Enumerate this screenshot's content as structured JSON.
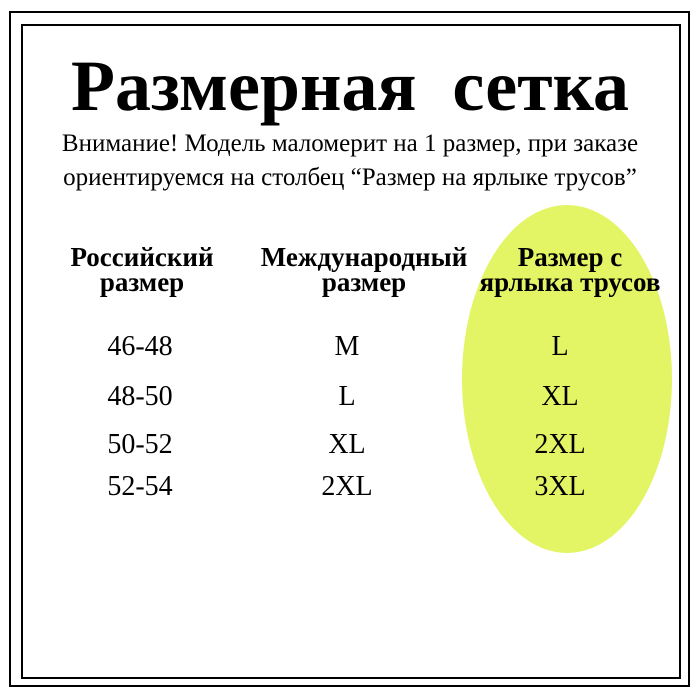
{
  "page": {
    "title": "Размерная сетка",
    "notice": {
      "line1": "Внимание! Модель маломерит на 1 размер, при заказе",
      "line2": "ориентируемся на столбец “Размер на ярлыке трусов”"
    }
  },
  "table": {
    "columns": [
      {
        "line1": "Российский",
        "line2": "размер"
      },
      {
        "line1": "Международный",
        "line2": "размер"
      },
      {
        "line1": "Размер с",
        "line2": "ярлыка трусов"
      }
    ]
  },
  "highlight": {
    "shape": "ellipse",
    "color": "#e3f464",
    "highlighted_column": "Размер с ярлыка трусов"
  },
  "chart_data": {
    "type": "table",
    "title": "Размерная сетка",
    "columns": [
      "Российский размер",
      "Международный размер",
      "Размер с ярлыка трусов"
    ],
    "rows": [
      [
        "46-48",
        "M",
        "L"
      ],
      [
        "48-50",
        "L",
        "XL"
      ],
      [
        "50-52",
        "XL",
        "2XL"
      ],
      [
        "52-54",
        "2XL",
        "3XL"
      ]
    ],
    "highlighted_column": "Размер с ярлыка трусов"
  }
}
